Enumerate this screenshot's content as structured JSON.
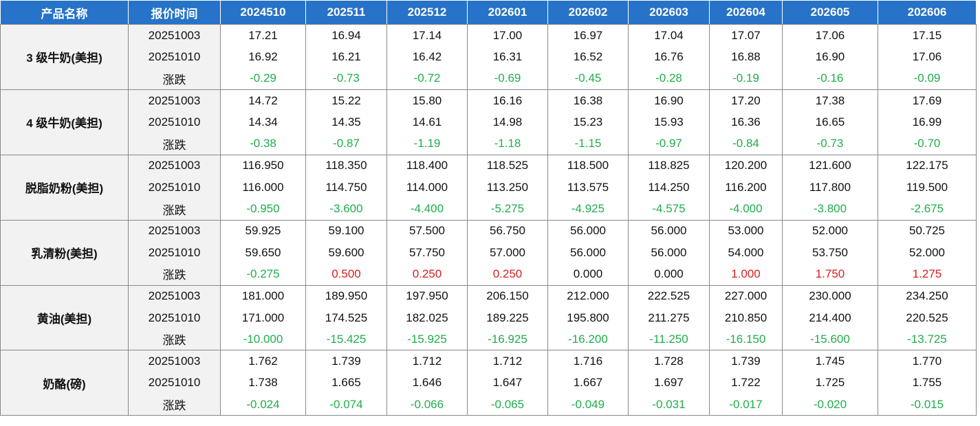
{
  "table": {
    "header": [
      "产品名称",
      "报价时间",
      "2024510",
      "202511",
      "202512",
      "202601",
      "202602",
      "202603",
      "202604",
      "202605",
      "202606"
    ],
    "groups": [
      {
        "name": "3 级牛奶(美担)",
        "rows": [
          {
            "label": "20251003",
            "values": [
              "17.21",
              "16.94",
              "17.14",
              "17.00",
              "16.97",
              "17.04",
              "17.07",
              "17.06",
              "17.15"
            ]
          },
          {
            "label": "20251010",
            "values": [
              "16.92",
              "16.21",
              "16.42",
              "16.31",
              "16.52",
              "16.76",
              "16.88",
              "16.90",
              "17.06"
            ]
          },
          {
            "label": "涨跌",
            "values": [
              "-0.29",
              "-0.73",
              "-0.72",
              "-0.69",
              "-0.45",
              "-0.28",
              "-0.19",
              "-0.16",
              "-0.09"
            ]
          }
        ]
      },
      {
        "name": "4 级牛奶(美担)",
        "rows": [
          {
            "label": "20251003",
            "values": [
              "14.72",
              "15.22",
              "15.80",
              "16.16",
              "16.38",
              "16.90",
              "17.20",
              "17.38",
              "17.69"
            ]
          },
          {
            "label": "20251010",
            "values": [
              "14.34",
              "14.35",
              "14.61",
              "14.98",
              "15.23",
              "15.93",
              "16.36",
              "16.65",
              "16.99"
            ]
          },
          {
            "label": "涨跌",
            "values": [
              "-0.38",
              "-0.87",
              "-1.19",
              "-1.18",
              "-1.15",
              "-0.97",
              "-0.84",
              "-0.73",
              "-0.70"
            ]
          }
        ]
      },
      {
        "name": "脱脂奶粉(美担)",
        "rows": [
          {
            "label": "20251003",
            "values": [
              "116.950",
              "118.350",
              "118.400",
              "118.525",
              "118.500",
              "118.825",
              "120.200",
              "121.600",
              "122.175"
            ]
          },
          {
            "label": "20251010",
            "values": [
              "116.000",
              "114.750",
              "114.000",
              "113.250",
              "113.575",
              "114.250",
              "116.200",
              "117.800",
              "119.500"
            ]
          },
          {
            "label": "涨跌",
            "values": [
              "-0.950",
              "-3.600",
              "-4.400",
              "-5.275",
              "-4.925",
              "-4.575",
              "-4.000",
              "-3.800",
              "-2.675"
            ]
          }
        ]
      },
      {
        "name": "乳清粉(美担)",
        "rows": [
          {
            "label": "20251003",
            "values": [
              "59.925",
              "59.100",
              "57.500",
              "56.750",
              "56.000",
              "56.000",
              "53.000",
              "52.000",
              "50.725"
            ]
          },
          {
            "label": "20251010",
            "values": [
              "59.650",
              "59.600",
              "57.750",
              "57.000",
              "56.000",
              "56.000",
              "54.000",
              "53.750",
              "52.000"
            ]
          },
          {
            "label": "涨跌",
            "values": [
              "-0.275",
              "0.500",
              "0.250",
              "0.250",
              "0.000",
              "0.000",
              "1.000",
              "1.750",
              "1.275"
            ]
          }
        ]
      },
      {
        "name": "黄油(美担)",
        "rows": [
          {
            "label": "20251003",
            "values": [
              "181.000",
              "189.950",
              "197.950",
              "206.150",
              "212.000",
              "222.525",
              "227.000",
              "230.000",
              "234.250"
            ]
          },
          {
            "label": "20251010",
            "values": [
              "171.000",
              "174.525",
              "182.025",
              "189.225",
              "195.800",
              "211.275",
              "210.850",
              "214.400",
              "220.525"
            ]
          },
          {
            "label": "涨跌",
            "values": [
              "-10.000",
              "-15.425",
              "-15.925",
              "-16.925",
              "-16.200",
              "-11.250",
              "-16.150",
              "-15.600",
              "-13.725"
            ]
          }
        ]
      },
      {
        "name": "奶酪(磅)",
        "rows": [
          {
            "label": "20251003",
            "values": [
              "1.762",
              "1.739",
              "1.712",
              "1.712",
              "1.716",
              "1.728",
              "1.739",
              "1.745",
              "1.770"
            ]
          },
          {
            "label": "20251010",
            "values": [
              "1.738",
              "1.665",
              "1.646",
              "1.647",
              "1.667",
              "1.697",
              "1.722",
              "1.725",
              "1.755"
            ]
          },
          {
            "label": "涨跌",
            "values": [
              "-0.024",
              "-0.074",
              "-0.066",
              "-0.065",
              "-0.049",
              "-0.031",
              "-0.017",
              "-0.020",
              "-0.015"
            ]
          }
        ]
      }
    ]
  }
}
